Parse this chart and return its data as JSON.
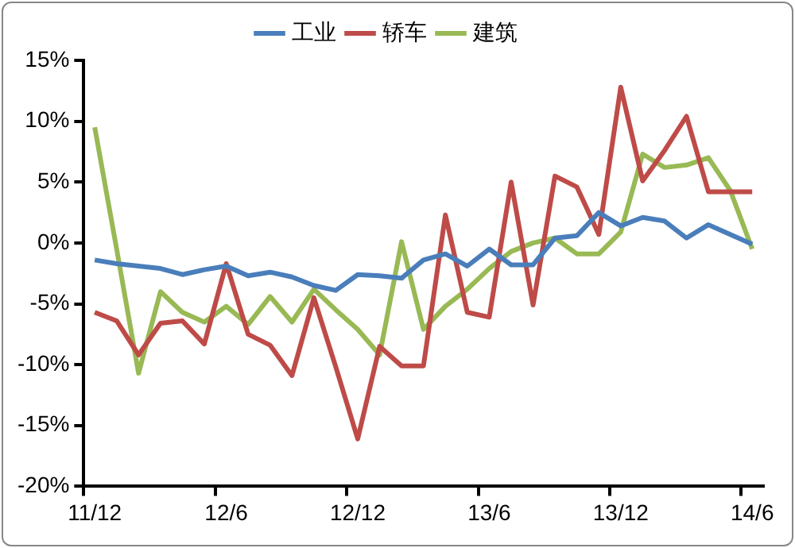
{
  "chart_data": {
    "type": "line",
    "categories": [
      "11/12",
      null,
      null,
      null,
      null,
      null,
      "12/6",
      null,
      null,
      null,
      null,
      null,
      "12/12",
      null,
      null,
      null,
      null,
      null,
      "13/6",
      null,
      null,
      null,
      null,
      null,
      "13/12",
      null,
      null,
      null,
      null,
      null,
      "14/6"
    ],
    "series": [
      {
        "name": "工业",
        "color": "#4a7ebb",
        "values": [
          -1.4,
          -1.7,
          -1.9,
          -2.1,
          -2.6,
          -2.2,
          -1.9,
          -2.7,
          -2.4,
          -2.8,
          -3.5,
          -3.9,
          -2.6,
          -2.7,
          -2.9,
          -1.4,
          -0.9,
          -1.9,
          -0.5,
          -1.8,
          -1.8,
          0.4,
          0.6,
          2.5,
          1.4,
          2.1,
          1.8,
          0.4,
          1.5,
          0.7,
          -0.1
        ]
      },
      {
        "name": "轿车",
        "color": "#be4b48",
        "values": [
          -5.7,
          -6.4,
          -9.2,
          -6.6,
          -6.4,
          -8.3,
          -1.7,
          -7.5,
          -8.4,
          -10.9,
          -4.5,
          -10.2,
          -16.1,
          -8.5,
          -10.1,
          -10.1,
          2.3,
          -5.7,
          -6.1,
          5.0,
          -5.1,
          5.5,
          4.6,
          0.7,
          12.8,
          5.1,
          7.6,
          10.4,
          4.2,
          4.2,
          4.2
        ]
      },
      {
        "name": "建筑",
        "color": "#98b954",
        "values": [
          9.5,
          -0.5,
          -10.7,
          -4.0,
          -5.7,
          -6.5,
          -5.2,
          -6.7,
          -4.4,
          -6.5,
          -3.8,
          -5.5,
          -7.1,
          -9.2,
          0.1,
          -7.1,
          -5.2,
          -3.8,
          -2.1,
          -0.7,
          0.0,
          0.4,
          -0.9,
          -0.9,
          0.9,
          7.3,
          6.2,
          6.4,
          7.0,
          4.3,
          -0.5
        ]
      }
    ],
    "ylim": [
      -20,
      15
    ],
    "yticks": [
      {
        "value": -20,
        "label": "-20%"
      },
      {
        "value": -15,
        "label": "-15%"
      },
      {
        "value": -10,
        "label": "-10%"
      },
      {
        "value": -5,
        "label": "-5%"
      },
      {
        "value": 0,
        "label": "0%"
      },
      {
        "value": 5,
        "label": "5%"
      },
      {
        "value": 10,
        "label": "10%"
      },
      {
        "value": 15,
        "label": "15%"
      }
    ],
    "grid": false,
    "legend": "top",
    "marker": "none",
    "line_style": "solid"
  }
}
